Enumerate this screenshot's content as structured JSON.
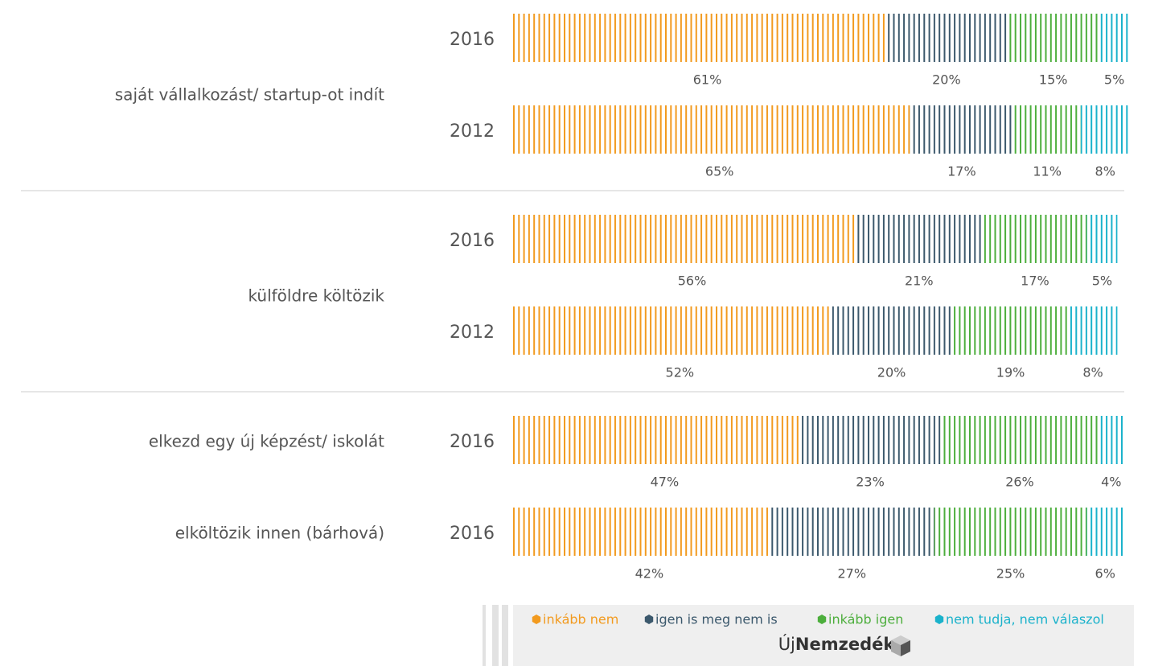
{
  "chart_data": {
    "type": "bar",
    "stacked": true,
    "orientation": "horizontal",
    "group_labels": [
      "saját vállalkozást/ startup-ot indít",
      "külföldre költözik",
      "elkezd egy új képzést/ iskolát",
      "elköltözik innen (bárhová)"
    ],
    "categories": [
      "2016",
      "2012",
      "2016",
      "2012",
      "2016",
      "2016"
    ],
    "series": [
      {
        "name": "inkább nem",
        "color": "#f29a1e",
        "values": [
          61,
          65,
          56,
          52,
          47,
          42
        ],
        "value_labels": [
          "61%",
          "65%",
          "56%",
          "52%",
          "47%",
          "42%"
        ]
      },
      {
        "name": "igen is meg nem is",
        "color": "#3b586c",
        "values": [
          20,
          17,
          21,
          20,
          23,
          27
        ],
        "value_labels": [
          "20%",
          "17%",
          "21%",
          "20%",
          "23%",
          "27%"
        ]
      },
      {
        "name": "inkább igen",
        "color": "#4cae3c",
        "values": [
          15,
          11,
          17,
          19,
          26,
          25
        ],
        "value_labels": [
          "15%",
          "11%",
          "17%",
          "19%",
          "26%",
          "25%"
        ]
      },
      {
        "name": "nem tudja, nem válaszol",
        "color": "#1ab2cb",
        "values": [
          5,
          8,
          5,
          8,
          4,
          6
        ],
        "value_labels": [
          "5%",
          "8%",
          "5%",
          "8%",
          "4%",
          "6%"
        ]
      }
    ],
    "source": {
      "prefix": "Új",
      "name": "Nemzedék"
    }
  }
}
